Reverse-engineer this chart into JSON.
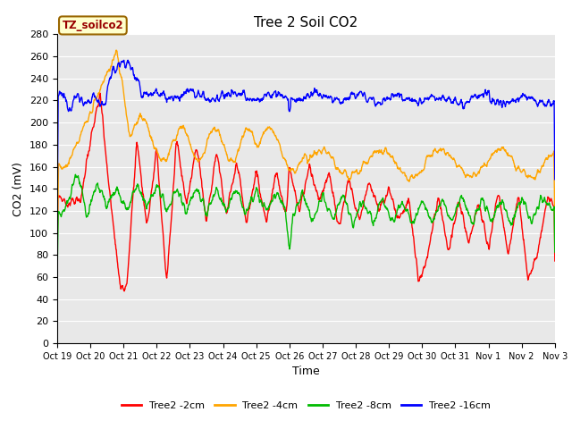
{
  "title": "Tree 2 Soil CO2",
  "xlabel": "Time",
  "ylabel": "CO2 (mV)",
  "ylim": [
    0,
    280
  ],
  "yticks": [
    0,
    20,
    40,
    60,
    80,
    100,
    120,
    140,
    160,
    180,
    200,
    220,
    240,
    260,
    280
  ],
  "xtick_labels": [
    "Oct 19",
    "Oct 20",
    "Oct 21",
    "Oct 22",
    "Oct 23",
    "Oct 24",
    "Oct 25",
    "Oct 26",
    "Oct 27",
    "Oct 28",
    "Oct 29",
    "Oct 30",
    "Oct 31",
    "Nov 1",
    "Nov 2",
    "Nov 3"
  ],
  "annotation_text": "TZ_soilco2",
  "annotation_box_facecolor": "#FFFFCC",
  "annotation_box_edgecolor": "#996600",
  "annotation_text_color": "#990000",
  "line_colors": [
    "#FF0000",
    "#FFA500",
    "#00BB00",
    "#0000FF"
  ],
  "line_labels": [
    "Tree2 -2cm",
    "Tree2 -4cm",
    "Tree2 -8cm",
    "Tree2 -16cm"
  ],
  "line_width": 1.0,
  "bg_color": "#E8E8E8",
  "grid_color": "#FFFFFF"
}
